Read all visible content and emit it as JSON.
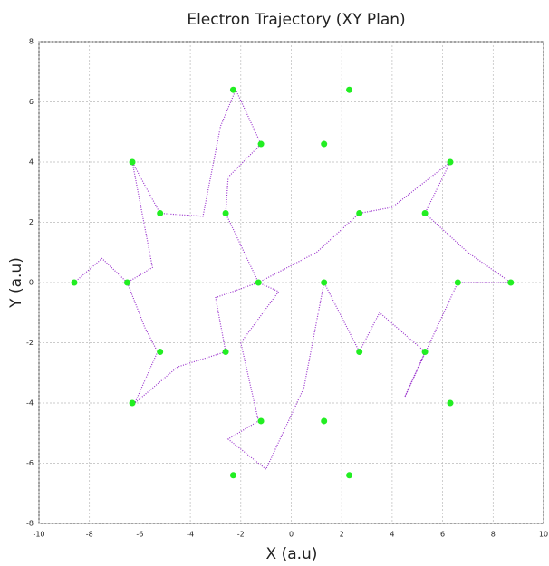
{
  "chart_data": {
    "type": "scatter",
    "title": "Electron Trajectory (XY Plan)",
    "x_label": "X (a.u)",
    "y_label": "Y (a.u)",
    "xlim": [
      -10,
      10
    ],
    "ylim": [
      -8,
      8
    ],
    "xticks": [
      -10,
      -8,
      -6,
      -4,
      -2,
      0,
      2,
      4,
      6,
      8,
      10
    ],
    "yticks": [
      -8,
      -6,
      -4,
      -2,
      0,
      2,
      4,
      6,
      8
    ],
    "grid": true,
    "series": [
      {
        "color": "#9a32cd",
        "style": "dotted-line",
        "x": [
          -8.6,
          -7.5,
          -6.5,
          -5.8,
          -5.3,
          -6.2,
          -4.5,
          -2.6,
          -3.0,
          -1.3,
          -0.5,
          -2.0,
          -1.3,
          -2.5,
          -1.0,
          0.5,
          1.3,
          2.7,
          3.5,
          5.3,
          4.5,
          6.6,
          8.7,
          7.0,
          5.3,
          6.3,
          4.0,
          2.7,
          1.0,
          -1.3,
          -2.6,
          -2.5,
          -1.2,
          -2.2,
          -2.8,
          -3.5,
          -5.2,
          -6.3,
          -5.5,
          -6.5
        ],
        "values": [
          0,
          0.8,
          0,
          -1.5,
          -2.3,
          -4.0,
          -2.8,
          -2.3,
          -0.5,
          0,
          -0.3,
          -2.0,
          -4.6,
          -5.2,
          -6.2,
          -3.5,
          0,
          -2.3,
          -1.0,
          -2.3,
          -3.8,
          0,
          0,
          1.0,
          2.3,
          4.0,
          2.5,
          2.3,
          1.0,
          0,
          2.3,
          3.5,
          4.6,
          6.4,
          5.2,
          2.2,
          2.3,
          4.0,
          0.5,
          0
        ]
      },
      {
        "color": "#22ee22",
        "style": "points",
        "x": [
          -2.3,
          2.3,
          -6.3,
          -1.2,
          1.3,
          6.3,
          -5.2,
          -2.6,
          2.7,
          5.3,
          -8.6,
          -6.5,
          -1.3,
          1.3,
          6.6,
          8.7,
          -5.2,
          -2.6,
          2.7,
          5.3,
          -6.3,
          -1.2,
          1.3,
          6.3,
          -2.3,
          2.3
        ],
        "values": [
          6.4,
          6.4,
          4.0,
          4.6,
          4.6,
          4.0,
          2.3,
          2.3,
          2.3,
          2.3,
          0,
          0,
          0,
          0,
          0,
          0,
          -2.3,
          -2.3,
          -2.3,
          -2.3,
          -4.0,
          -4.6,
          -4.6,
          -4.0,
          -6.4,
          -6.4
        ]
      }
    ]
  }
}
